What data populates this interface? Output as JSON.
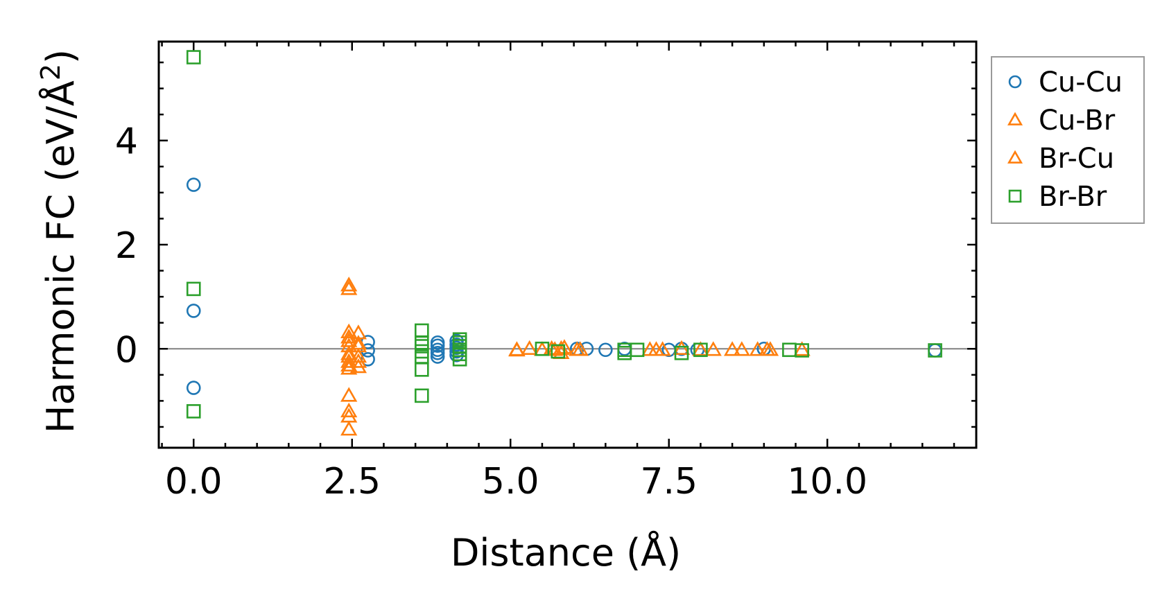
{
  "chart_data": {
    "type": "scatter",
    "title": "",
    "xlabel": "Distance (Å)",
    "ylabel_main": "Harmonic FC (eV/Å",
    "ylabel_sup": "2",
    "ylabel_close": ")",
    "xlim": [
      -0.55,
      12.35
    ],
    "ylim": [
      -1.9,
      5.9
    ],
    "xticks": [
      0.0,
      2.5,
      5.0,
      7.5,
      10.0
    ],
    "xtick_labels": [
      "0.0",
      "2.5",
      "5.0",
      "7.5",
      "10.0"
    ],
    "yticks": [
      0,
      2,
      4
    ],
    "ytick_labels": [
      "0",
      "2",
      "4"
    ],
    "x_minor_step": 0.5,
    "y_minor_step": 0.5,
    "zero_line": true,
    "grid": false,
    "legend_position": "outside-right-top",
    "series": [
      {
        "name": "Cu-Cu",
        "marker": "circle",
        "color": "#1f77b4",
        "points": [
          [
            0.0,
            3.15
          ],
          [
            0.0,
            0.73
          ],
          [
            0.0,
            -0.75
          ],
          [
            2.75,
            0.13
          ],
          [
            2.75,
            -0.03
          ],
          [
            2.75,
            -0.2
          ],
          [
            3.85,
            0.12
          ],
          [
            3.85,
            0.06
          ],
          [
            3.85,
            -0.02
          ],
          [
            3.85,
            -0.08
          ],
          [
            3.85,
            -0.15
          ],
          [
            4.15,
            0.15
          ],
          [
            4.15,
            0.08
          ],
          [
            4.15,
            0.02
          ],
          [
            4.15,
            -0.05
          ],
          [
            4.15,
            -0.12
          ],
          [
            6.05,
            0.0
          ],
          [
            6.2,
            0.0
          ],
          [
            6.5,
            -0.02
          ],
          [
            6.8,
            0.0
          ],
          [
            7.5,
            -0.02
          ],
          [
            7.7,
            0.0
          ],
          [
            7.95,
            -0.02
          ],
          [
            9.0,
            0.0
          ],
          [
            11.7,
            -0.03
          ]
        ]
      },
      {
        "name": "Cu-Br",
        "marker": "triangle",
        "color": "#ff7f0e",
        "points": [
          [
            2.45,
            1.22
          ],
          [
            2.45,
            0.32
          ],
          [
            2.45,
            0.15
          ],
          [
            2.45,
            0.05
          ],
          [
            2.45,
            -0.1
          ],
          [
            2.45,
            -0.25
          ],
          [
            2.45,
            -0.38
          ],
          [
            2.45,
            -0.9
          ],
          [
            2.45,
            -1.2
          ],
          [
            2.45,
            -1.3
          ],
          [
            2.6,
            0.3
          ],
          [
            2.6,
            0.05
          ],
          [
            2.6,
            -0.25
          ],
          [
            2.6,
            -0.35
          ],
          [
            5.1,
            -0.02
          ],
          [
            5.3,
            0.0
          ],
          [
            5.5,
            -0.02
          ],
          [
            5.65,
            0.0
          ],
          [
            5.8,
            0.0
          ],
          [
            5.8,
            -0.08
          ],
          [
            6.05,
            -0.02
          ],
          [
            7.2,
            -0.02
          ],
          [
            7.4,
            -0.02
          ],
          [
            7.7,
            0.0
          ],
          [
            8.2,
            -0.02
          ],
          [
            8.5,
            -0.02
          ],
          [
            8.65,
            -0.02
          ],
          [
            8.9,
            -0.02
          ],
          [
            9.05,
            -0.02
          ],
          [
            9.6,
            -0.02
          ]
        ]
      },
      {
        "name": "Br-Cu",
        "marker": "triangle",
        "color": "#ff7f0e",
        "points": [
          [
            2.45,
            1.15
          ],
          [
            2.45,
            0.22
          ],
          [
            2.45,
            -0.15
          ],
          [
            2.45,
            -0.32
          ],
          [
            2.45,
            -1.55
          ],
          [
            2.6,
            0.1
          ],
          [
            2.6,
            -0.15
          ],
          [
            5.1,
            -0.03
          ],
          [
            5.7,
            -0.02
          ],
          [
            5.85,
            0.02
          ],
          [
            6.1,
            -0.02
          ],
          [
            7.3,
            -0.02
          ],
          [
            8.0,
            -0.02
          ],
          [
            9.1,
            -0.02
          ]
        ]
      },
      {
        "name": "Br-Br",
        "marker": "square",
        "color": "#2ca02c",
        "points": [
          [
            0.0,
            5.6
          ],
          [
            0.0,
            1.15
          ],
          [
            0.0,
            -1.2
          ],
          [
            3.6,
            0.35
          ],
          [
            3.6,
            0.12
          ],
          [
            3.6,
            0.05
          ],
          [
            3.6,
            -0.05
          ],
          [
            3.6,
            -0.15
          ],
          [
            3.6,
            -0.4
          ],
          [
            3.6,
            -0.9
          ],
          [
            4.2,
            0.18
          ],
          [
            4.2,
            0.12
          ],
          [
            4.2,
            0.05
          ],
          [
            4.2,
            -0.02
          ],
          [
            4.2,
            -0.1
          ],
          [
            4.2,
            -0.2
          ],
          [
            5.5,
            0.0
          ],
          [
            5.75,
            -0.05
          ],
          [
            6.8,
            -0.02
          ],
          [
            6.8,
            -0.08
          ],
          [
            7.0,
            -0.02
          ],
          [
            7.7,
            -0.08
          ],
          [
            8.0,
            -0.02
          ],
          [
            9.4,
            -0.02
          ],
          [
            9.6,
            -0.03
          ],
          [
            11.7,
            -0.03
          ]
        ]
      }
    ]
  }
}
